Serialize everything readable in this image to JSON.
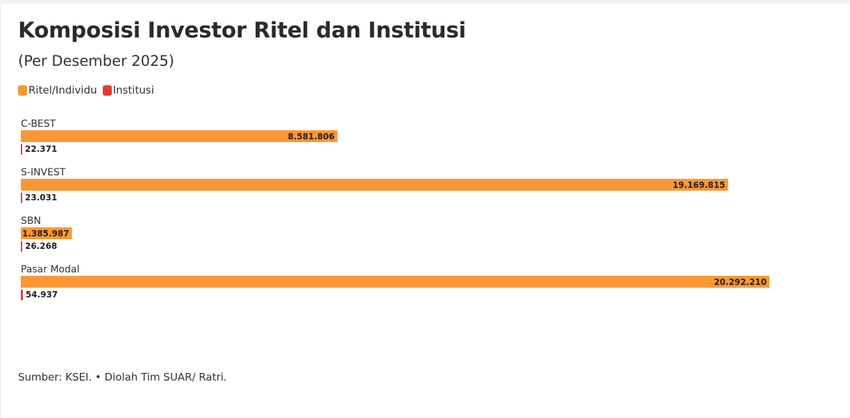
{
  "header": {
    "title": "Komposisi Investor Ritel dan Institusi",
    "subtitle": "(Per Desember 2025)"
  },
  "legend": {
    "items": [
      {
        "label": "Ritel/Individu",
        "color": "#fb9733"
      },
      {
        "label": "Institusi",
        "color": "#e63b32"
      }
    ]
  },
  "footer": {
    "source": "Sumber: KSEI. • Diolah Tim SUAR/ Ratri."
  },
  "chart_data": {
    "type": "bar",
    "orientation": "horizontal",
    "title": "Komposisi Investor Ritel dan Institusi",
    "subtitle": "(Per Desember 2025)",
    "categories": [
      "C-BEST",
      "S-INVEST",
      "SBN",
      "Pasar Modal"
    ],
    "series": [
      {
        "name": "Ritel/Individu",
        "color": "#fb9733",
        "values": [
          8581806,
          19169815,
          1385987,
          20292210
        ],
        "labels": [
          "8.581.806",
          "19.169.815",
          "1.385.987",
          "20.292.210"
        ]
      },
      {
        "name": "Institusi",
        "color": "#e63b32",
        "values": [
          22371,
          23031,
          26268,
          54937
        ],
        "labels": [
          "22.371",
          "23.031",
          "26.268",
          "54.937"
        ]
      }
    ],
    "xlim": [
      0,
      20292210
    ],
    "grid": false,
    "legend_position": "top-left"
  }
}
